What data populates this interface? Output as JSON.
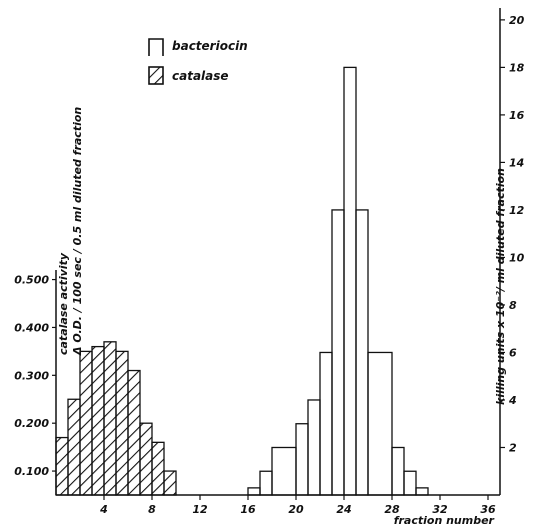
{
  "chart_data": {
    "type": "bar",
    "x_axis": {
      "label": "fraction number",
      "ticks": [
        4,
        8,
        12,
        16,
        20,
        24,
        28,
        32,
        36
      ],
      "range": [
        0,
        37
      ]
    },
    "y_left": {
      "label_line1": "catalase activity",
      "label_line2": "Δ O.D. / 100 sec / 0.5 ml diluted fraction",
      "ticks": [
        "0.100",
        "0.200",
        "0.300",
        "0.400",
        "0.500"
      ],
      "range": [
        0.05,
        0.52
      ]
    },
    "y_right": {
      "label": "killing units x 10⁻²/ ml diluted fraction",
      "ticks": [
        "2",
        "4",
        "6",
        "8",
        "10",
        "12",
        "14",
        "16",
        "18",
        "20"
      ],
      "range": [
        0,
        20.5
      ]
    },
    "legend": [
      {
        "name": "bacteriocin",
        "style": "open"
      },
      {
        "name": "catalase",
        "style": "hatched"
      }
    ],
    "series": [
      {
        "name": "catalase",
        "axis": "left",
        "bins": [
          {
            "x": 0,
            "y": 0.17
          },
          {
            "x": 1,
            "y": 0.25
          },
          {
            "x": 2,
            "y": 0.35
          },
          {
            "x": 3,
            "y": 0.36
          },
          {
            "x": 4,
            "y": 0.37
          },
          {
            "x": 5,
            "y": 0.35
          },
          {
            "x": 6,
            "y": 0.31
          },
          {
            "x": 7,
            "y": 0.2
          },
          {
            "x": 8,
            "y": 0.16
          },
          {
            "x": 9,
            "y": 0.1
          }
        ]
      },
      {
        "name": "bacteriocin",
        "axis": "right",
        "bins": [
          {
            "x": 16,
            "y": 0.3
          },
          {
            "x": 17,
            "y": 1
          },
          {
            "x": 18,
            "y": 2
          },
          {
            "x": 20,
            "y": 3
          },
          {
            "x": 21,
            "y": 4
          },
          {
            "x": 22,
            "y": 6
          },
          {
            "x": 23,
            "y": 12
          },
          {
            "x": 24,
            "y": 18
          },
          {
            "x": 25,
            "y": 12
          },
          {
            "x": 26,
            "y": 6
          },
          {
            "x": 28,
            "y": 2
          },
          {
            "x": 29,
            "y": 1
          },
          {
            "x": 30,
            "y": 0.3
          }
        ]
      }
    ]
  }
}
